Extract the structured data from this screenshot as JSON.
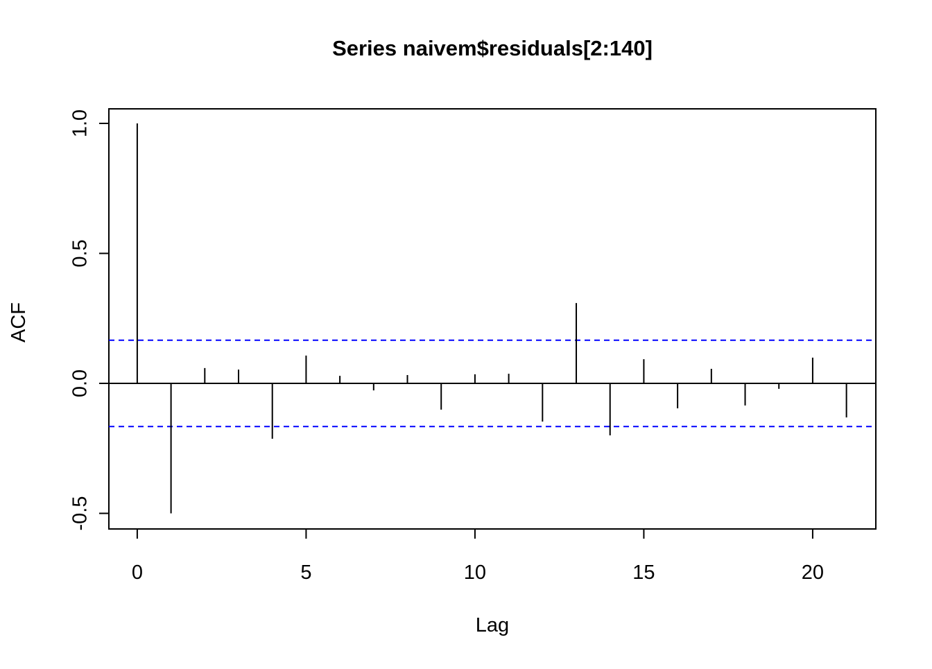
{
  "chart_data": {
    "type": "acf",
    "title": "Series  naivem$residuals[2:140]",
    "x_label": "Lag",
    "y_label": "ACF",
    "x": [
      0,
      1,
      2,
      3,
      4,
      5,
      6,
      7,
      8,
      9,
      10,
      11,
      12,
      13,
      14,
      15,
      16,
      17,
      18,
      19,
      20,
      21
    ],
    "values": [
      1.0,
      -0.5,
      0.059,
      0.053,
      -0.213,
      0.107,
      0.029,
      -0.027,
      0.032,
      -0.101,
      0.035,
      0.037,
      -0.147,
      0.309,
      -0.2,
      0.093,
      -0.096,
      0.056,
      -0.085,
      -0.021,
      0.099,
      -0.131
    ],
    "color": "#000000",
    "conf_limits": [
      0.166,
      -0.166
    ],
    "conf_color": "#0000ff",
    "xlim": [
      -0.84,
      21.87
    ],
    "xticks": [
      0,
      5,
      10,
      15,
      20
    ],
    "ylim": [
      -0.56,
      1.056
    ],
    "yticks": [
      -0.5,
      {
        "value": 0,
        "label": "0.0"
      },
      0.5,
      {
        "value": 1,
        "label": "1.0"
      }
    ]
  }
}
